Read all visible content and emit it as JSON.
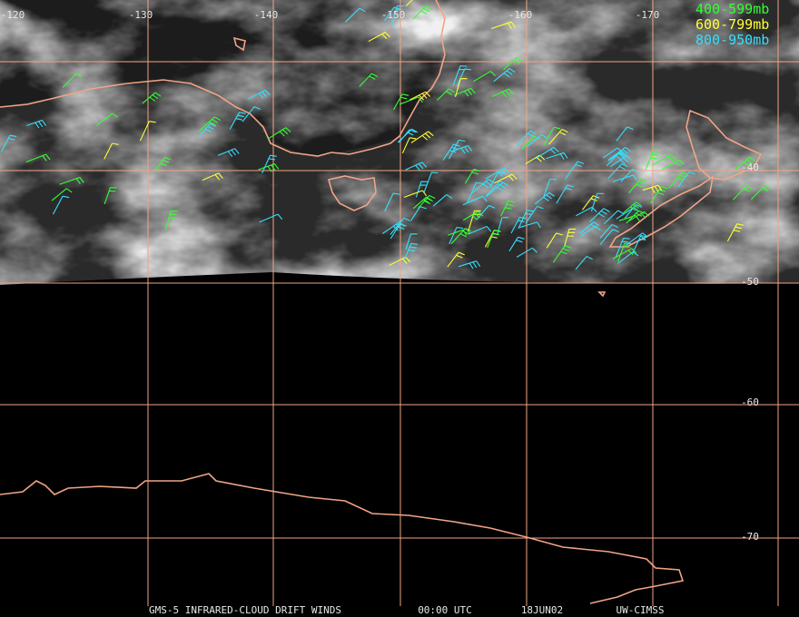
{
  "map": {
    "longitude_labels": [
      "-120",
      "-130",
      "-140",
      "-150",
      "-160",
      "-170"
    ],
    "latitude_labels": [
      "-40",
      "-50",
      "-60",
      "-70"
    ],
    "legend": [
      {
        "label": "400-599mb",
        "color": "#33ff33"
      },
      {
        "label": "600-799mb",
        "color": "#ffff33"
      },
      {
        "label": "800-950mb",
        "color": "#33e0ff"
      }
    ],
    "footer": [
      "GMS-5 INFRARED-CLOUD DRIFT WINDS",
      "00:00 UTC",
      "18JUN02",
      "UW-CIMSS"
    ]
  }
}
